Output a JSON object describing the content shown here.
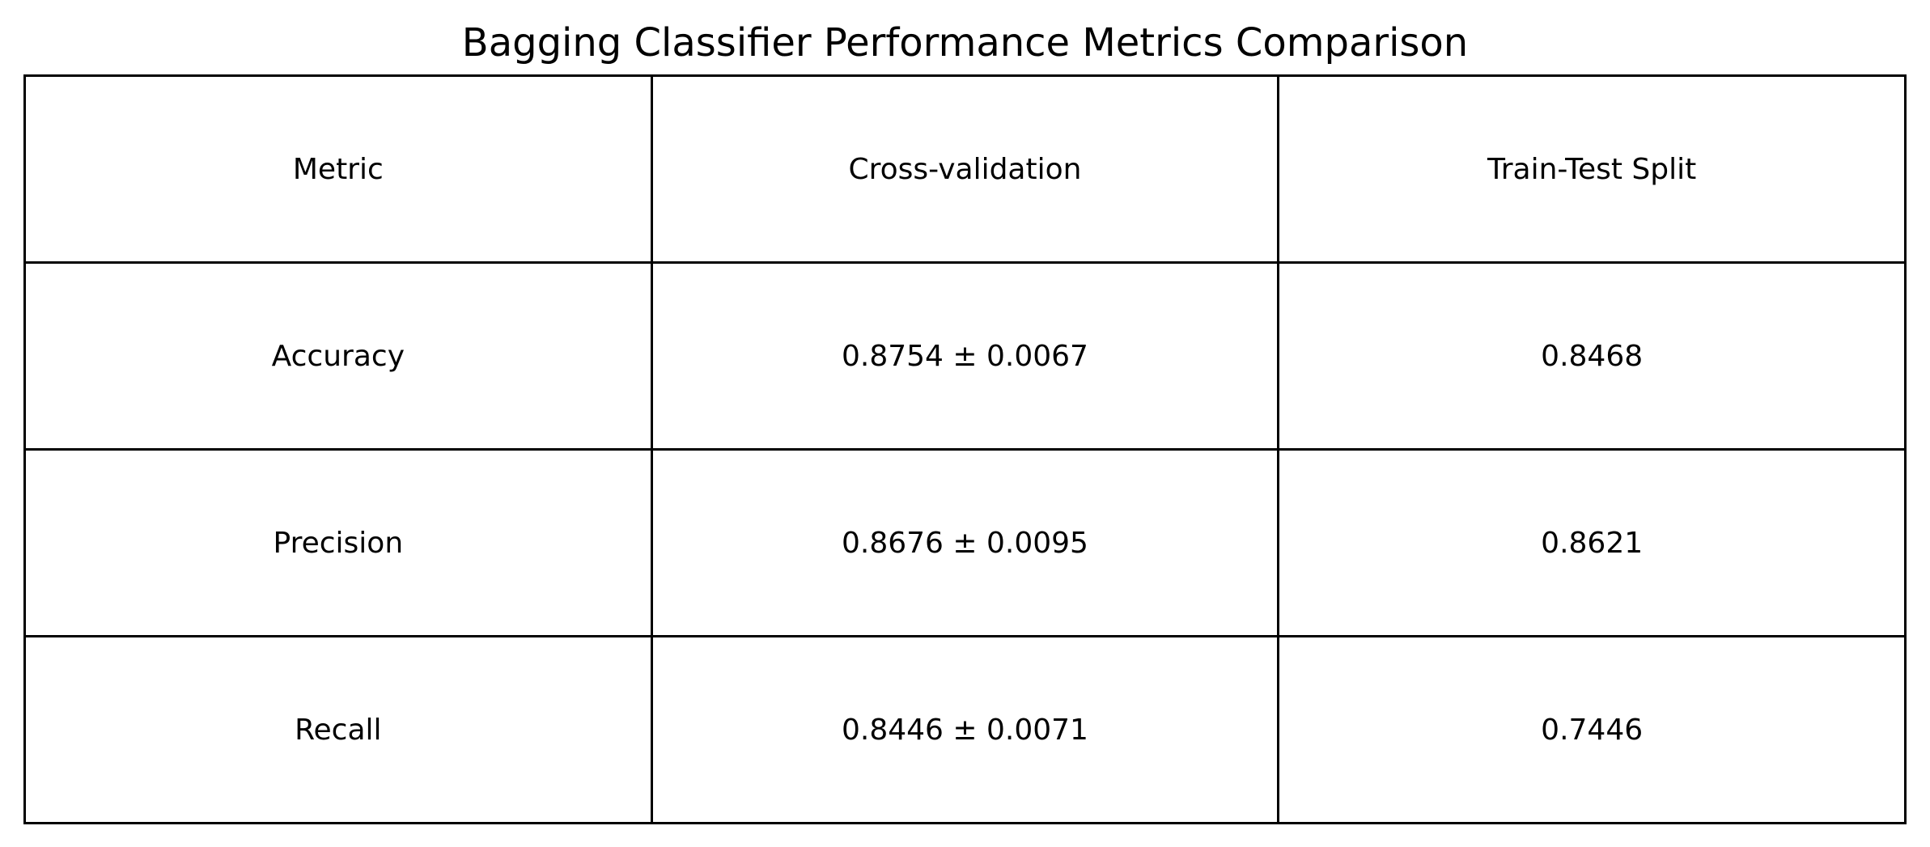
{
  "chart_data": {
    "type": "table",
    "title": "Bagging Classifier Performance Metrics Comparison",
    "columns": [
      "Metric",
      "Cross-validation",
      "Train-Test Split"
    ],
    "rows": [
      [
        "Accuracy",
        "0.8754 ± 0.0067",
        "0.8468"
      ],
      [
        "Precision",
        "0.8676 ± 0.0095",
        "0.8621"
      ],
      [
        "Recall",
        "0.8446 ± 0.0071",
        "0.7446"
      ]
    ]
  }
}
